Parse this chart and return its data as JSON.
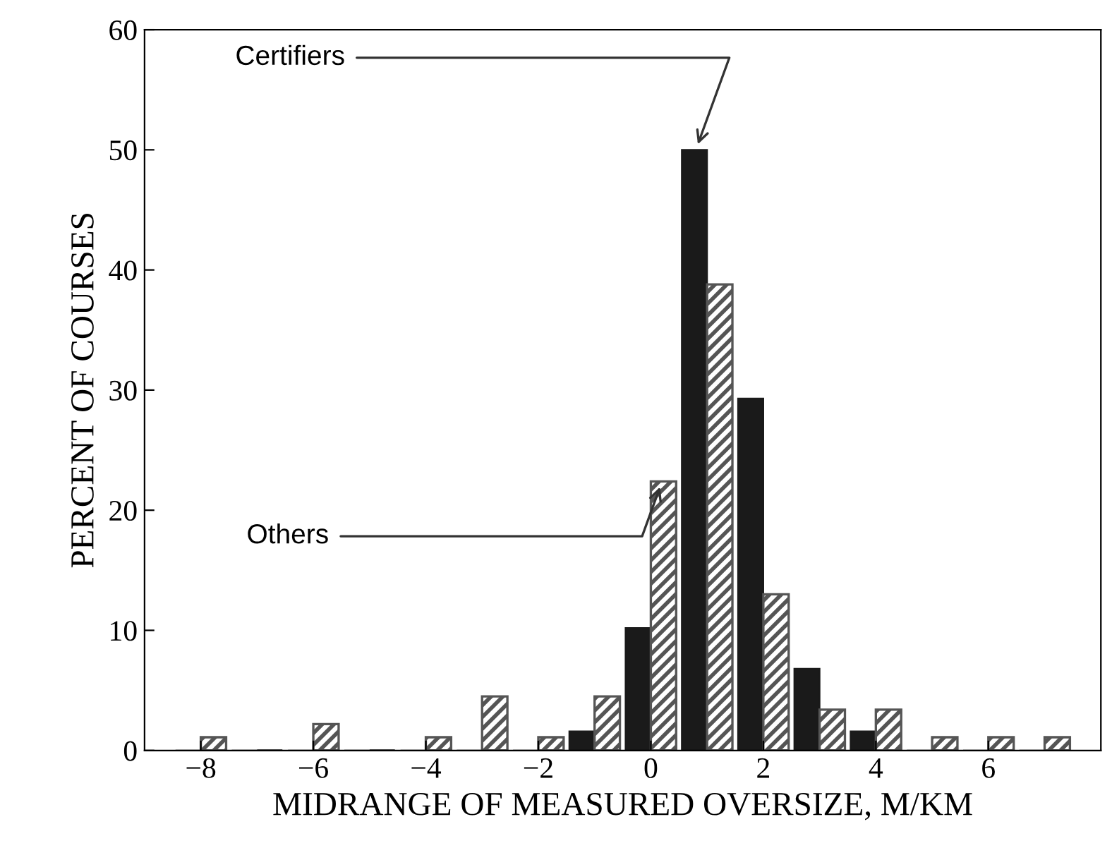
{
  "chart_data": {
    "type": "bar",
    "xlabel": "MIDRANGE OF MEASURED OVERSIZE, M/KM",
    "ylabel": "PERCENT OF COURSES",
    "x": [
      -8,
      -7,
      -6,
      -5,
      -4,
      -3,
      -2,
      -1,
      0,
      1,
      2,
      3,
      4,
      5,
      6,
      7
    ],
    "series": [
      {
        "color": "#1a1a1a",
        "values": [
          0,
          0,
          0,
          0,
          0,
          0,
          0,
          1.6,
          10.2,
          50,
          29.3,
          6.8,
          1.6,
          0,
          0,
          0
        ]
      },
      {
        "color": "#555555",
        "values": [
          1.1,
          0,
          2.2,
          0,
          1.1,
          4.5,
          1.1,
          4.5,
          22.4,
          38.8,
          13,
          3.4,
          3.4,
          1.1,
          1.1,
          1.1
        ]
      }
    ],
    "annotations": [
      {
        "text": "Certifiers",
        "x": 0.8,
        "y": 50
      },
      {
        "text": "Others",
        "x": 0.2,
        "y": 22.4
      }
    ],
    "xlim": [
      -9,
      8
    ],
    "ylim": [
      0,
      60
    ],
    "xticks": [
      -8,
      -6,
      -4,
      -2,
      0,
      2,
      4,
      6
    ],
    "yticks": [
      0,
      10,
      20,
      30,
      40,
      50,
      60
    ],
    "grid": false,
    "legend": false
  }
}
